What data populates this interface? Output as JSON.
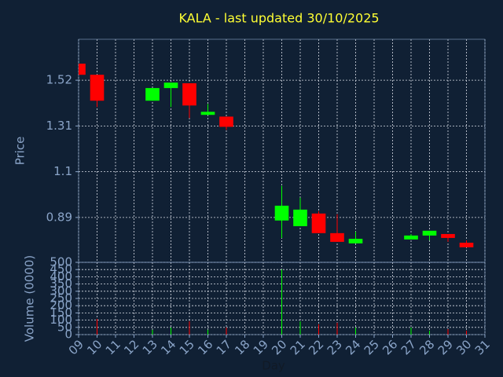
{
  "chart_data": {
    "type": "candlestick",
    "title": "KALA - last updated 30/10/2025",
    "ylabel": "Price",
    "volume_label": "Volume (0000)",
    "xlabel": "Day",
    "up_color": "#00ff00",
    "down_color": "#ff0000",
    "x": [
      9,
      10,
      13,
      14,
      15,
      16,
      17,
      20,
      21,
      22,
      23,
      24,
      27,
      28,
      29,
      30
    ],
    "open": [
      1.596,
      1.545,
      1.426,
      1.484,
      1.506,
      1.361,
      1.353,
      0.876,
      0.85,
      0.908,
      0.818,
      0.771,
      0.789,
      0.807,
      0.814,
      0.774
    ],
    "high": [
      1.596,
      1.545,
      1.484,
      1.509,
      1.506,
      1.411,
      1.353,
      1.035,
      0.981,
      0.919,
      0.905,
      0.825,
      0.814,
      0.829,
      0.814,
      0.785
    ],
    "low": [
      1.545,
      1.397,
      1.426,
      1.397,
      1.346,
      1.361,
      1.292,
      0.796,
      0.85,
      0.818,
      0.778,
      0.771,
      0.789,
      0.785,
      0.778,
      0.753
    ],
    "close": [
      1.545,
      1.426,
      1.484,
      1.509,
      1.404,
      1.375,
      1.306,
      0.944,
      0.926,
      0.818,
      0.778,
      0.792,
      0.807,
      0.829,
      0.796,
      0.753
    ],
    "volume": [
      0,
      109,
      33,
      49,
      92,
      33,
      49,
      451,
      92,
      71,
      82,
      49,
      49,
      27,
      38,
      27
    ],
    "xlim": [
      9,
      31
    ],
    "xticks": [
      {
        "value": 9,
        "label": "09"
      },
      10,
      11,
      12,
      13,
      14,
      15,
      16,
      17,
      18,
      19,
      20,
      21,
      22,
      23,
      24,
      25,
      26,
      27,
      28,
      29,
      30,
      31
    ],
    "ylim": [
      0.684,
      1.708
    ],
    "yticks": [
      0.89,
      1.1,
      1.31,
      1.52
    ],
    "y2lim": [
      0,
      500
    ],
    "y2ticks": [
      0,
      50,
      100,
      150,
      200,
      250,
      300,
      350,
      400,
      450,
      500
    ],
    "grid": true
  }
}
